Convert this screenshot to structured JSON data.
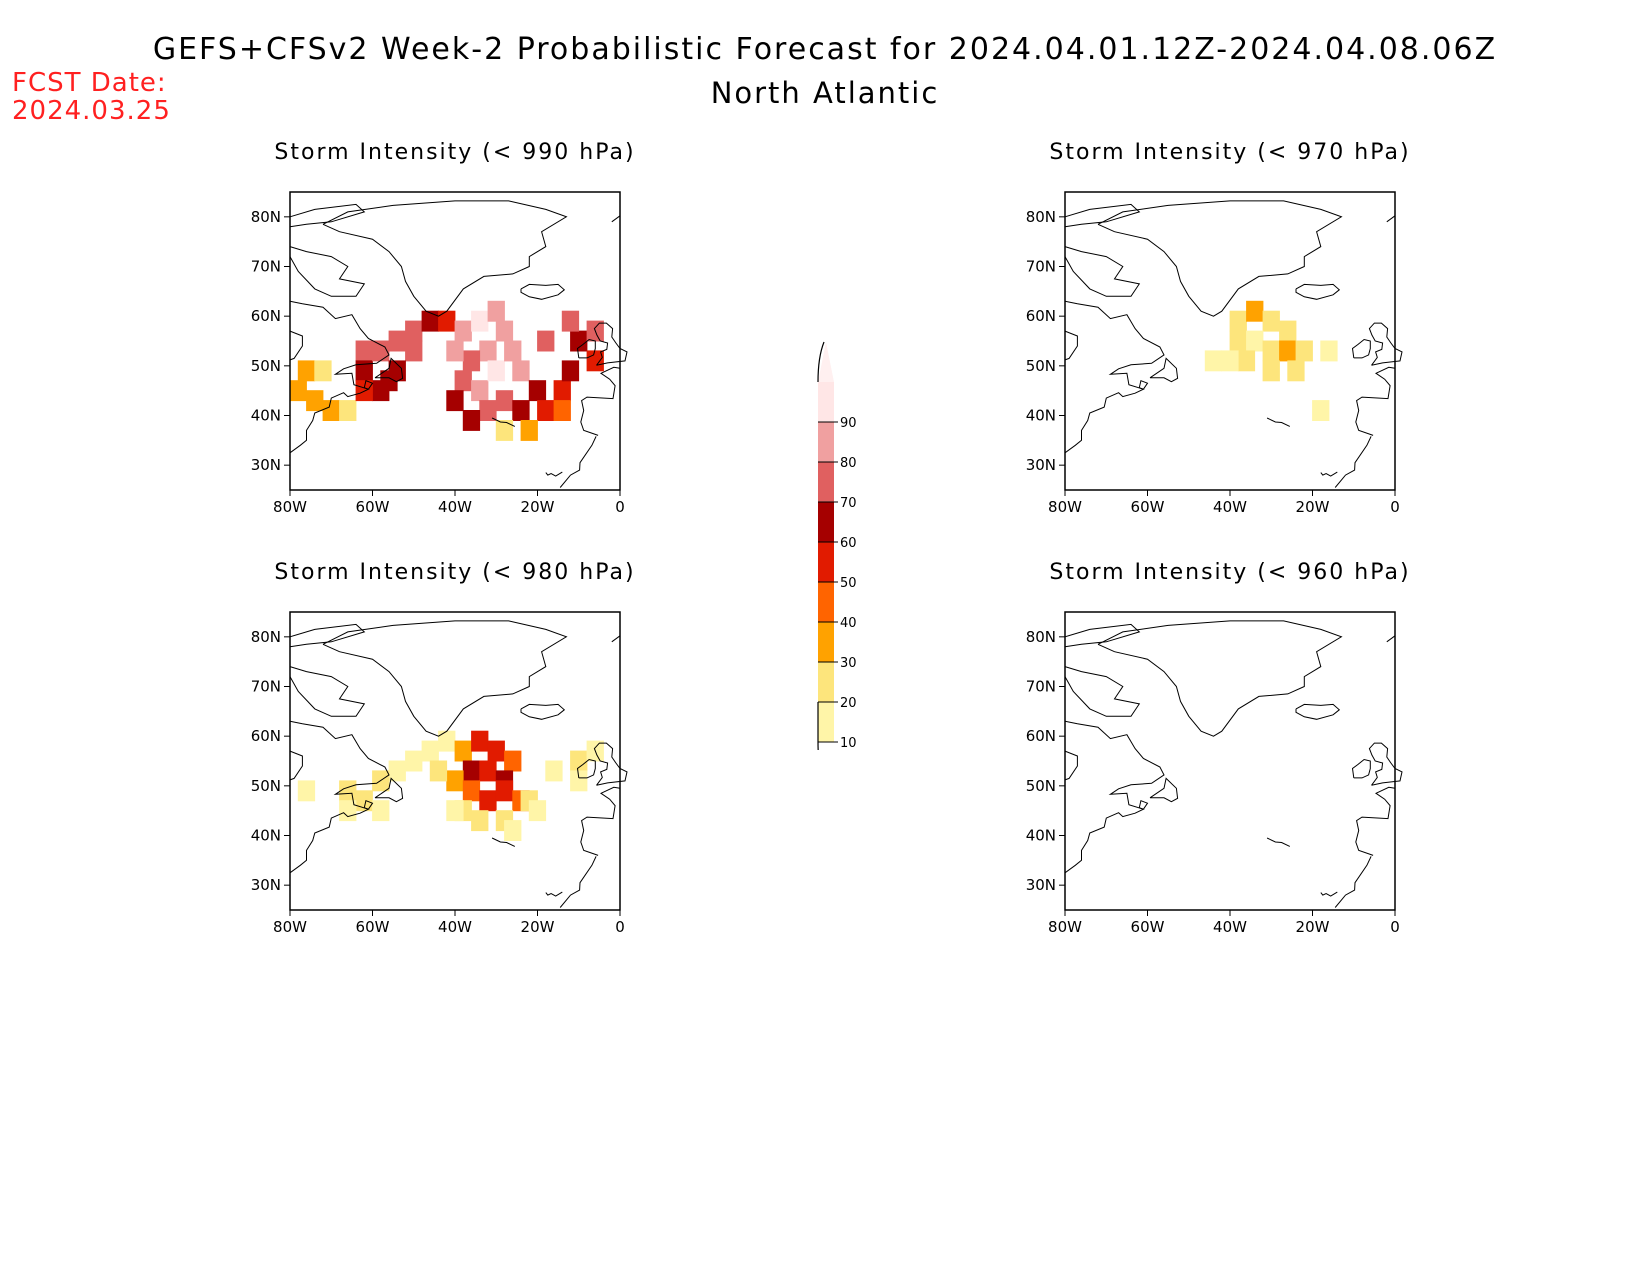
{
  "header": {
    "title": "GEFS+CFSv2 Week-2 Probabilistic Forecast for 2024.04.01.12Z-2024.04.08.06Z",
    "subtitle": "North Atlantic",
    "fcst_label": "FCST Date:",
    "fcst_value": "2024.03.25"
  },
  "axes": {
    "lon_ticks": [
      "80W",
      "60W",
      "40W",
      "20W",
      "0"
    ],
    "lat_ticks": [
      "80N",
      "70N",
      "60N",
      "50N",
      "40N",
      "30N"
    ]
  },
  "panels": [
    {
      "id": "p990",
      "title": "Storm Intensity (< 990 hPa)",
      "cells": [
        [
          -76,
          49,
          30
        ],
        [
          -72,
          49,
          20
        ],
        [
          -78,
          45,
          30
        ],
        [
          -74,
          43,
          30
        ],
        [
          -70,
          41,
          30
        ],
        [
          -66,
          41,
          20
        ],
        [
          -62,
          53,
          70
        ],
        [
          -62,
          49,
          60
        ],
        [
          -58,
          45,
          60
        ],
        [
          -58,
          53,
          70
        ],
        [
          -62,
          45,
          50
        ],
        [
          -56,
          47,
          60
        ],
        [
          -54,
          55,
          70
        ],
        [
          -50,
          57,
          70
        ],
        [
          -46,
          59,
          60
        ],
        [
          -42,
          59,
          50
        ],
        [
          -50,
          53,
          70
        ],
        [
          -54,
          49,
          60
        ],
        [
          -38,
          57,
          80
        ],
        [
          -34,
          59,
          90
        ],
        [
          -30,
          61,
          80
        ],
        [
          -28,
          57,
          80
        ],
        [
          -32,
          53,
          80
        ],
        [
          -36,
          51,
          70
        ],
        [
          -40,
          53,
          80
        ],
        [
          -38,
          47,
          70
        ],
        [
          -34,
          45,
          80
        ],
        [
          -30,
          49,
          90
        ],
        [
          -26,
          53,
          80
        ],
        [
          -24,
          49,
          80
        ],
        [
          -28,
          43,
          70
        ],
        [
          -32,
          41,
          70
        ],
        [
          -36,
          39,
          60
        ],
        [
          -24,
          41,
          60
        ],
        [
          -20,
          45,
          60
        ],
        [
          -18,
          41,
          50
        ],
        [
          -22,
          37,
          30
        ],
        [
          -28,
          37,
          20
        ],
        [
          -14,
          45,
          50
        ],
        [
          -12,
          49,
          60
        ],
        [
          -10,
          55,
          60
        ],
        [
          -6,
          57,
          70
        ],
        [
          -12,
          59,
          70
        ],
        [
          -6,
          51,
          50
        ],
        [
          -14,
          41,
          40
        ],
        [
          -18,
          55,
          70
        ],
        [
          -40,
          43,
          60
        ]
      ]
    },
    {
      "id": "p970",
      "title": "Storm Intensity (< 970 hPa)",
      "cells": [
        [
          -38,
          59,
          20
        ],
        [
          -34,
          61,
          30
        ],
        [
          -30,
          59,
          20
        ],
        [
          -26,
          57,
          20
        ],
        [
          -38,
          55,
          20
        ],
        [
          -34,
          55,
          10
        ],
        [
          -30,
          53,
          20
        ],
        [
          -26,
          53,
          30
        ],
        [
          -22,
          53,
          20
        ],
        [
          -36,
          51,
          20
        ],
        [
          -30,
          49,
          20
        ],
        [
          -24,
          49,
          20
        ],
        [
          -40,
          51,
          10
        ],
        [
          -44,
          51,
          10
        ],
        [
          -16,
          53,
          10
        ],
        [
          -18,
          41,
          10
        ]
      ]
    },
    {
      "id": "p980",
      "title": "Storm Intensity (< 980 hPa)",
      "cells": [
        [
          -76,
          49,
          10
        ],
        [
          -66,
          49,
          20
        ],
        [
          -62,
          47,
          20
        ],
        [
          -58,
          45,
          10
        ],
        [
          -66,
          45,
          10
        ],
        [
          -54,
          53,
          10
        ],
        [
          -58,
          51,
          20
        ],
        [
          -50,
          55,
          10
        ],
        [
          -46,
          57,
          10
        ],
        [
          -42,
          59,
          10
        ],
        [
          -38,
          57,
          30
        ],
        [
          -34,
          59,
          50
        ],
        [
          -30,
          57,
          50
        ],
        [
          -26,
          55,
          40
        ],
        [
          -36,
          53,
          60
        ],
        [
          -32,
          53,
          50
        ],
        [
          -28,
          51,
          60
        ],
        [
          -40,
          51,
          30
        ],
        [
          -36,
          49,
          40
        ],
        [
          -32,
          47,
          50
        ],
        [
          -28,
          49,
          50
        ],
        [
          -24,
          47,
          40
        ],
        [
          -38,
          45,
          20
        ],
        [
          -34,
          43,
          20
        ],
        [
          -28,
          43,
          20
        ],
        [
          -22,
          47,
          20
        ],
        [
          -20,
          45,
          10
        ],
        [
          -16,
          53,
          10
        ],
        [
          -10,
          55,
          20
        ],
        [
          -6,
          57,
          10
        ],
        [
          -10,
          51,
          10
        ],
        [
          -44,
          53,
          20
        ],
        [
          -40,
          45,
          10
        ],
        [
          -26,
          41,
          10
        ]
      ]
    },
    {
      "id": "p960",
      "title": "Storm Intensity (< 960 hPa)",
      "cells": []
    }
  ],
  "colorbar": {
    "levels": [
      "10",
      "20",
      "30",
      "40",
      "50",
      "60",
      "70",
      "80",
      "90"
    ],
    "colors": [
      "#fff5a8",
      "#fde57c",
      "#ffa200",
      "#ff6400",
      "#e11b00",
      "#a50000",
      "#e06060",
      "#f0a0a0",
      "#ffe6e6"
    ]
  }
}
